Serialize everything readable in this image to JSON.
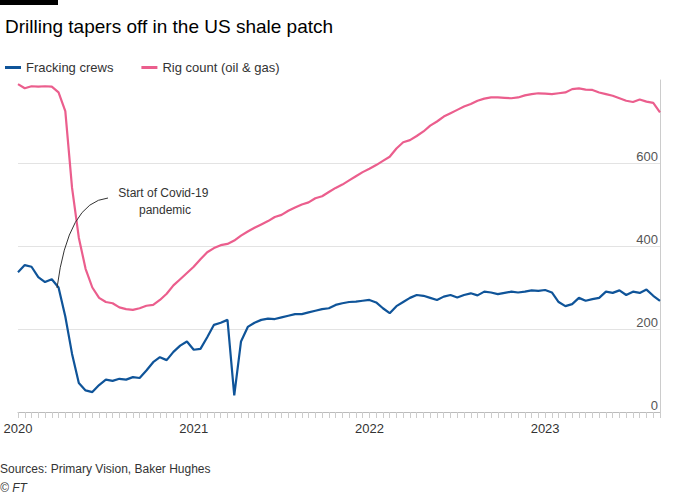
{
  "chart_data": {
    "type": "line",
    "title": "Drilling tapers off in the US shale patch",
    "legend": "top-left",
    "grid": true,
    "categories": [
      "2020",
      null,
      null,
      null,
      null,
      null,
      null,
      null,
      null,
      null,
      null,
      null,
      null,
      null,
      null,
      null,
      null,
      null,
      null,
      null,
      null,
      null,
      null,
      null,
      null,
      null,
      "2021",
      null,
      null,
      null,
      null,
      null,
      null,
      null,
      null,
      null,
      null,
      null,
      null,
      null,
      null,
      null,
      null,
      null,
      null,
      null,
      null,
      null,
      null,
      null,
      null,
      null,
      "2022",
      null,
      null,
      null,
      null,
      null,
      null,
      null,
      null,
      null,
      null,
      null,
      null,
      null,
      null,
      null,
      null,
      null,
      null,
      null,
      null,
      null,
      null,
      null,
      null,
      null,
      "2023",
      null,
      null,
      null,
      null,
      null,
      null,
      null,
      null,
      null,
      null,
      null,
      null,
      null,
      null,
      null,
      null,
      null
    ],
    "series": [
      {
        "name": "Fracking crews",
        "color": "#0f5499",
        "values": [
          337,
          354,
          350,
          325,
          313,
          320,
          300,
          230,
          140,
          70,
          52,
          48,
          65,
          78,
          75,
          80,
          78,
          84,
          82,
          100,
          120,
          132,
          125,
          145,
          160,
          170,
          150,
          152,
          180,
          210,
          215,
          222,
          40,
          170,
          205,
          215,
          222,
          225,
          224,
          228,
          232,
          236,
          236,
          240,
          244,
          248,
          250,
          258,
          262,
          265,
          266,
          268,
          270,
          264,
          250,
          238,
          255,
          265,
          275,
          282,
          280,
          275,
          270,
          278,
          282,
          276,
          282,
          286,
          281,
          290,
          288,
          284,
          287,
          290,
          288,
          290,
          293,
          292,
          294,
          288,
          265,
          255,
          260,
          275,
          268,
          272,
          275,
          290,
          287,
          293,
          282,
          290,
          287,
          295,
          280,
          268
        ]
      },
      {
        "name": "Rig count (oil & gas)",
        "color": "#eb5e8d",
        "values": [
          790,
          780,
          785,
          784,
          785,
          784,
          770,
          725,
          540,
          420,
          345,
          300,
          275,
          265,
          262,
          252,
          248,
          246,
          250,
          256,
          258,
          270,
          285,
          305,
          320,
          335,
          350,
          368,
          385,
          395,
          402,
          405,
          413,
          425,
          435,
          444,
          452,
          460,
          470,
          475,
          485,
          493,
          500,
          505,
          515,
          520,
          530,
          540,
          548,
          558,
          568,
          578,
          586,
          595,
          605,
          615,
          635,
          650,
          655,
          665,
          676,
          690,
          700,
          712,
          720,
          728,
          736,
          742,
          750,
          755,
          758,
          758,
          757,
          756,
          758,
          763,
          766,
          768,
          767,
          766,
          768,
          770,
          778,
          780,
          777,
          776,
          770,
          766,
          762,
          756,
          750,
          747,
          753,
          748,
          745,
          722
        ]
      }
    ],
    "ylim": [
      0,
      800
    ],
    "yticks": [
      0,
      200,
      400,
      600
    ],
    "annotations": [
      {
        "text": "Start of Covid-19 pandemic"
      }
    ],
    "source": "Sources: Primary Vision, Baker Hughes",
    "credit": "© FT"
  }
}
